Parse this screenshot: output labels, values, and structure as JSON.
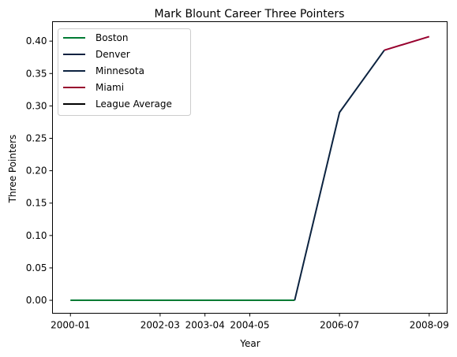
{
  "chart_data": {
    "type": "line",
    "title": "Mark Blount Career Three Pointers",
    "xlabel": "Year",
    "ylabel": "Three Pointers",
    "categories": [
      "2000-01",
      "2001-02",
      "2002-03",
      "2003-04",
      "2004-05",
      "2005-06",
      "2006-07",
      "2007-08",
      "2008-09"
    ],
    "x_tick_labels": [
      "2000-01",
      "2002-03",
      "2003-04",
      "2004-05",
      "2006-07",
      "2008-09"
    ],
    "x_tick_positions": [
      0,
      2,
      3,
      4,
      6,
      8
    ],
    "ylim": [
      -0.02,
      0.43
    ],
    "y_ticks": [
      0.0,
      0.05,
      0.1,
      0.15,
      0.2,
      0.25,
      0.3,
      0.35,
      0.4
    ],
    "y_tick_labels": [
      "0.00",
      "0.05",
      "0.10",
      "0.15",
      "0.20",
      "0.25",
      "0.30",
      "0.35",
      "0.40"
    ],
    "grid": false,
    "legend_position": "top-left",
    "series": [
      {
        "name": "Boston",
        "color": "#007A33",
        "points": [
          [
            0,
            0.0
          ],
          [
            1,
            0.0
          ],
          [
            2,
            0.0
          ],
          [
            3,
            0.0
          ],
          [
            4,
            0.0
          ],
          [
            5,
            0.0
          ]
        ]
      },
      {
        "name": "Denver",
        "color": "#0E2240",
        "points": []
      },
      {
        "name": "Minnesota",
        "color": "#0C2340",
        "points": [
          [
            5,
            0.0
          ],
          [
            6,
            0.29
          ],
          [
            7,
            0.386
          ]
        ]
      },
      {
        "name": "Miami",
        "color": "#98002E",
        "points": [
          [
            7,
            0.386
          ],
          [
            8,
            0.407
          ]
        ]
      },
      {
        "name": "League Average",
        "color": "#000000",
        "points": []
      }
    ]
  }
}
